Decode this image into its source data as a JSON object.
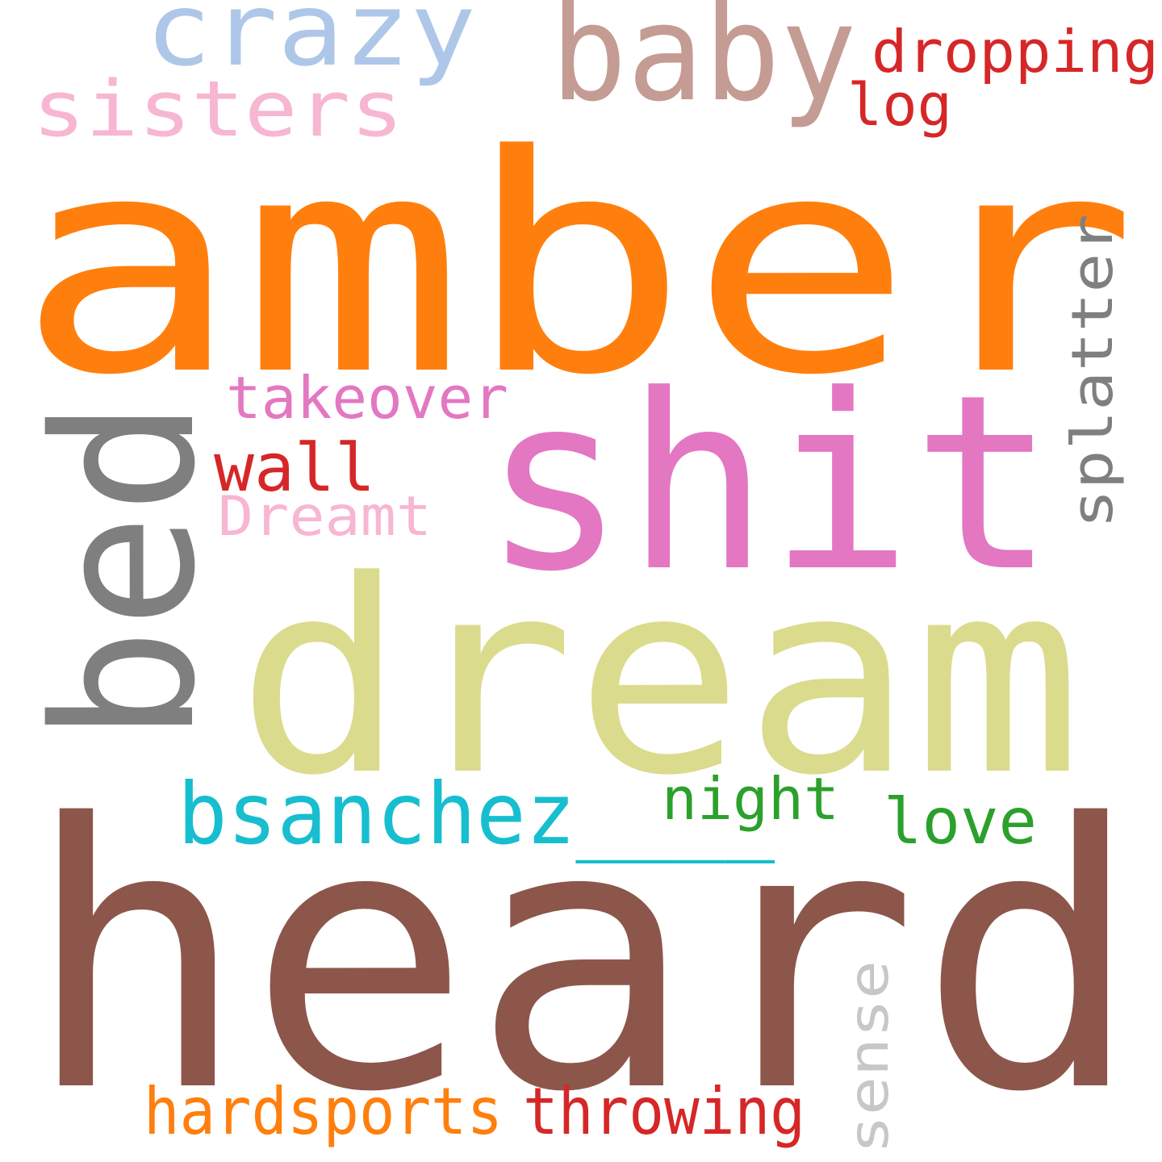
{
  "words": [
    {
      "id": "amber",
      "text": "amber",
      "color": "#ff7f0e",
      "vertical": false
    },
    {
      "id": "heard",
      "text": "heard",
      "color": "#8c564b",
      "vertical": false
    },
    {
      "id": "dream",
      "text": "dream",
      "color": "#dbdb8d",
      "vertical": false
    },
    {
      "id": "shit",
      "text": "shit",
      "color": "#e377c2",
      "vertical": false
    },
    {
      "id": "bed",
      "text": "bed",
      "color": "#7f7f7f",
      "vertical": true
    },
    {
      "id": "baby",
      "text": "baby",
      "color": "#c49c94",
      "vertical": false
    },
    {
      "id": "crazy",
      "text": "crazy",
      "color": "#aec7e8",
      "vertical": false
    },
    {
      "id": "sisters",
      "text": "sisters",
      "color": "#f7b6d2",
      "vertical": false
    },
    {
      "id": "dropping",
      "text": "dropping",
      "color": "#d62728",
      "vertical": false
    },
    {
      "id": "log",
      "text": "log",
      "color": "#d62728",
      "vertical": false
    },
    {
      "id": "splatter",
      "text": "splatter",
      "color": "#7f7f7f",
      "vertical": true
    },
    {
      "id": "takeover",
      "text": "takeover",
      "color": "#e377c2",
      "vertical": false
    },
    {
      "id": "wall",
      "text": "wall",
      "color": "#d62728",
      "vertical": false
    },
    {
      "id": "dreamt",
      "text": "Dreamt",
      "color": "#f7b6d2",
      "vertical": false
    },
    {
      "id": "bsanchez",
      "text": "bsanchez____",
      "color": "#17becf",
      "vertical": false
    },
    {
      "id": "night",
      "text": "night",
      "color": "#2ca02c",
      "vertical": false
    },
    {
      "id": "love",
      "text": "love",
      "color": "#2ca02c",
      "vertical": false
    },
    {
      "id": "sense",
      "text": "sense",
      "color": "#c7c7c7",
      "vertical": true
    },
    {
      "id": "hardsports",
      "text": "hardsports",
      "color": "#ff7f0e",
      "vertical": false
    },
    {
      "id": "throwing",
      "text": "throwing",
      "color": "#d62728",
      "vertical": false
    }
  ]
}
